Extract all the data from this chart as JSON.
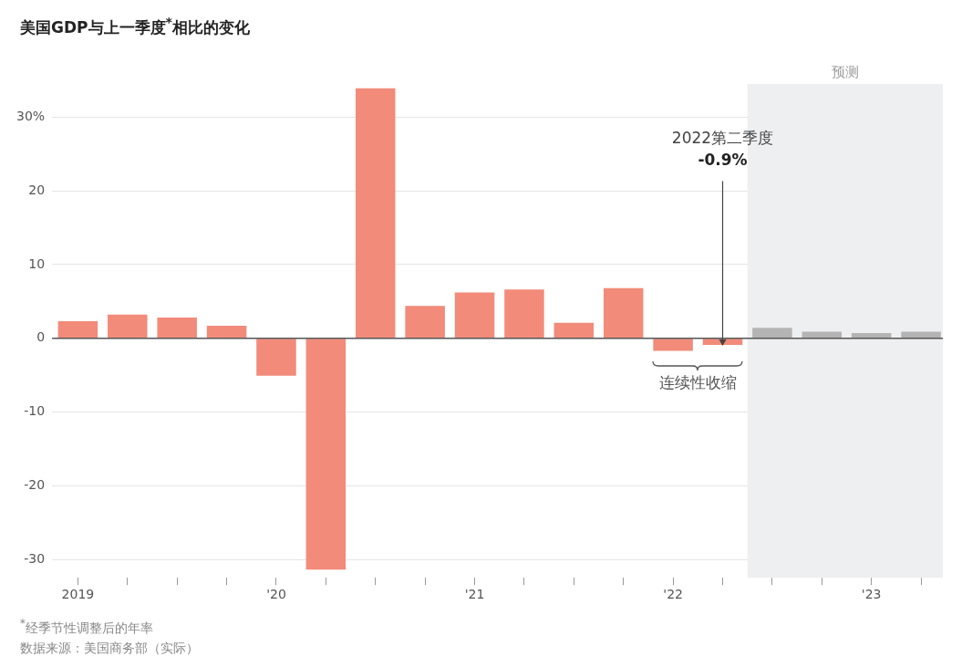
{
  "chart_data": {
    "type": "bar",
    "title": "美国GDP与上一季度$^{*}$相比的变化",
    "x": [
      2019,
      2019.25,
      2019.5,
      2019.75,
      2020,
      2020.25,
      2020.5,
      2020.75,
      2021,
      2021.25,
      2021.5,
      2021.75,
      2022,
      2022.25,
      2022.5,
      2022.75,
      2023,
      2023.25
    ],
    "values": [
      2.3,
      3.2,
      2.8,
      1.7,
      -5.1,
      -31.4,
      33.9,
      4.4,
      6.2,
      6.6,
      2.1,
      6.8,
      -1.7,
      -0.9,
      1.4,
      0.9,
      0.7,
      0.9
    ],
    "colors": [
      "#f28b7a",
      "#f28b7a",
      "#f28b7a",
      "#f28b7a",
      "#f28b7a",
      "#f28b7a",
      "#f28b7a",
      "#f28b7a",
      "#f28b7a",
      "#f28b7a",
      "#f28b7a",
      "#f28b7a",
      "#f28b7a",
      "#f28b7a",
      "#b4b4b4",
      "#b4b4b4",
      "#b4b4b4",
      "#b4b4b4"
    ],
    "xlim": [
      2018.87,
      2023.36
    ],
    "xticks": [
      {
        "value": 2019,
        "label": "2019"
      },
      {
        "value": 2019.25,
        "label": null
      },
      {
        "value": 2019.5,
        "label": null
      },
      {
        "value": 2019.75,
        "label": null
      },
      {
        "value": 2020,
        "label": "'20"
      },
      {
        "value": 2020.25,
        "label": null
      },
      {
        "value": 2020.5,
        "label": null
      },
      {
        "value": 2020.75,
        "label": null
      },
      {
        "value": 2021,
        "label": "'21"
      },
      {
        "value": 2021.25,
        "label": null
      },
      {
        "value": 2021.5,
        "label": null
      },
      {
        "value": 2021.75,
        "label": null
      },
      {
        "value": 2022,
        "label": "'22"
      },
      {
        "value": 2022.25,
        "label": null
      },
      {
        "value": 2022.5,
        "label": null
      },
      {
        "value": 2022.75,
        "label": null
      },
      {
        "value": 2023,
        "label": "'23"
      },
      {
        "value": 2023.25,
        "label": null
      }
    ],
    "ylim": [
      -32.5,
      34.5
    ],
    "yticks": [
      {
        "value": 30,
        "label": "30%"
      },
      20,
      10,
      0,
      -10,
      -20,
      -30
    ],
    "grid": "y",
    "bands": [
      {
        "axis": "x",
        "from": 2022.375,
        "to": 2023.36,
        "label": "预测",
        "color": "#eeeff1"
      }
    ],
    "annotations": [
      {
        "text": "2022第二季度\n-0.9%",
        "x": 2022.25,
        "y": -0.9
      },
      {
        "text": "连续性收缩",
        "x": 2022,
        "y": -1.7
      },
      "$^{*}$经季节性调整后的年率",
      "数据来源：美国商务部（实际）"
    ]
  }
}
